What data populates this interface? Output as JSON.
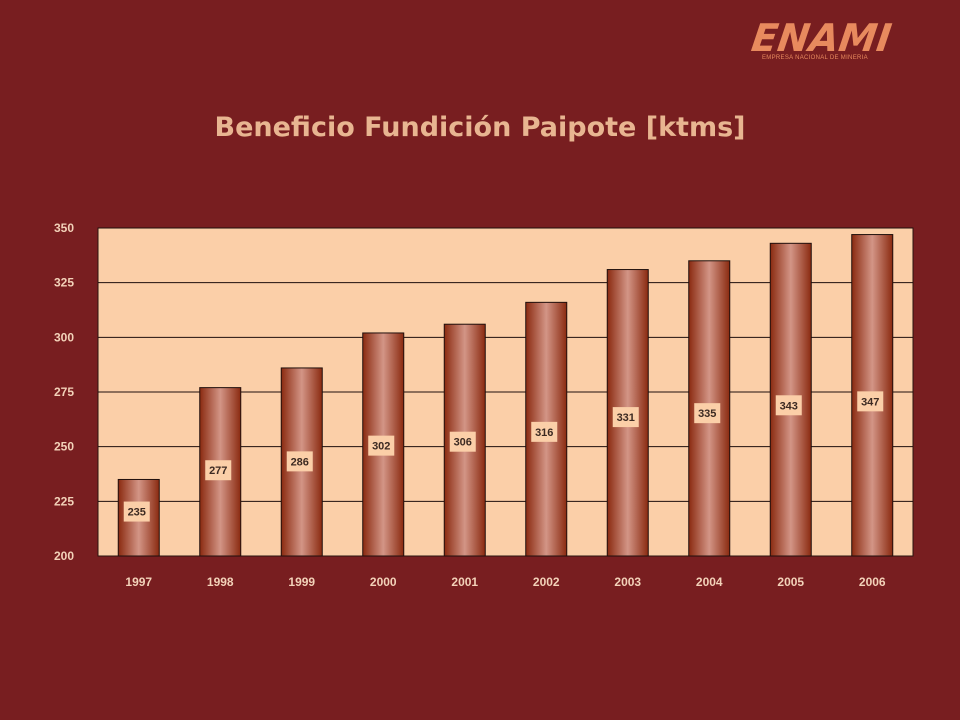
{
  "logo": {
    "name": "ENAMI",
    "tagline": "EMPRESA NACIONAL DE MINERIA"
  },
  "colors": {
    "background": "#781e20",
    "plot_area": "#fbcfa8",
    "bar_edge": "#8a2a10",
    "bar_center": "#d39586",
    "label_box": "#fbcfa8",
    "title": "#e8b591",
    "tick_text": "#f3d2b9"
  },
  "chart_data": {
    "type": "bar",
    "title": "Beneficio Fundición Paipote [ktms]",
    "xlabel": "",
    "ylabel": "",
    "categories": [
      "1997",
      "1998",
      "1999",
      "2000",
      "2001",
      "2002",
      "2003",
      "2004",
      "2005",
      "2006"
    ],
    "values": [
      235,
      277,
      286,
      302,
      306,
      316,
      331,
      335,
      343,
      347
    ],
    "ylim": [
      200,
      350
    ],
    "yticks": [
      200,
      225,
      250,
      275,
      300,
      325,
      350
    ],
    "grid": true,
    "legend": "none",
    "data_labels": true
  }
}
